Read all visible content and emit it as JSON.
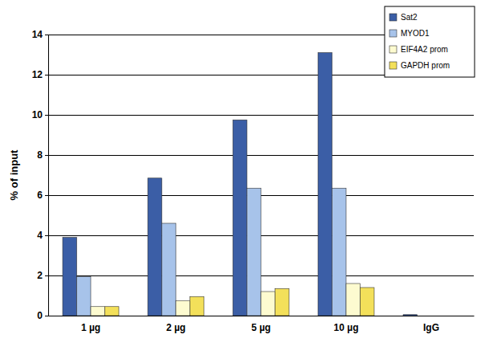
{
  "chart_data": {
    "type": "bar",
    "y_label": "% of input",
    "categories": [
      "1 µg",
      "2 µg",
      "5 µg",
      "10 µg",
      "IgG"
    ],
    "series": [
      {
        "name": "Sat2",
        "color": "#3b5ea6",
        "values": [
          3.9,
          6.85,
          9.75,
          13.1,
          0.05
        ]
      },
      {
        "name": "MYOD1",
        "color": "#a7c3ea",
        "values": [
          1.95,
          4.6,
          6.35,
          6.35,
          0
        ]
      },
      {
        "name": "EIF4A2 prom",
        "color": "#fdfbd0",
        "values": [
          0.45,
          0.75,
          1.2,
          1.6,
          0
        ]
      },
      {
        "name": "GAPDH prom",
        "color": "#f3e05a",
        "values": [
          0.45,
          0.95,
          1.35,
          1.4,
          0
        ]
      }
    ],
    "ylim": [
      0,
      14
    ],
    "yticks": [
      0,
      2,
      4,
      6,
      8,
      10,
      12,
      14
    ],
    "grid": true,
    "legend": "top-right"
  }
}
